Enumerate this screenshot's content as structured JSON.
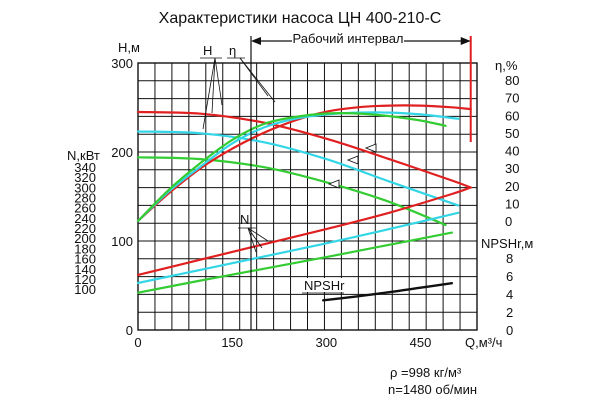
{
  "chart_data": {
    "type": "line",
    "title": "Характеристики насоса  ЦН 400-210-С",
    "work_range_label": "Рабочий интервал",
    "work_range": [
      180,
      530
    ],
    "x": {
      "label": "Q,м³/ч",
      "range": [
        0,
        540
      ],
      "ticks": [
        0,
        150,
        300,
        450
      ],
      "tick_labels": [
        "0",
        "150",
        "300",
        "450"
      ]
    },
    "axes": {
      "H": {
        "label": "H,м",
        "range": [
          0,
          300
        ],
        "ticks": [
          0,
          100,
          200,
          300
        ],
        "tick_labels": [
          "0",
          "100",
          "200",
          "300"
        ]
      },
      "N": {
        "label": "N,кВт",
        "range": [
          0,
          340
        ],
        "ticks": [
          100,
          120,
          140,
          160,
          180,
          200,
          220,
          240,
          260,
          280,
          300,
          320,
          340
        ],
        "tick_labels": [
          "100",
          "120",
          "140",
          "160",
          "180",
          "200",
          "220",
          "240",
          "260",
          "280",
          "300",
          "320",
          "340"
        ]
      },
      "eta": {
        "label": "η,%",
        "range": [
          0,
          80
        ],
        "ticks": [
          0,
          10,
          20,
          30,
          40,
          50,
          60,
          70,
          80
        ],
        "tick_labels": [
          "0",
          "10",
          "20",
          "30",
          "40",
          "50",
          "60",
          "70",
          "80"
        ]
      },
      "NPSH": {
        "label": "NPSHr,м",
        "range": [
          0,
          10
        ],
        "ticks": [
          0,
          2,
          4,
          6,
          8
        ],
        "tick_labels": [
          "0",
          "2",
          "4",
          "6",
          "8"
        ]
      }
    },
    "series_labels": {
      "H": "H",
      "N": "N",
      "eta": "η",
      "NPSH": "NPSHr"
    },
    "colors": {
      "red": "#e02020",
      "cyan": "#33d6e6",
      "green": "#33cc33",
      "black": "#111111"
    },
    "series": [
      {
        "group": "H",
        "color": "red",
        "x": [
          0,
          100,
          200,
          300,
          400,
          500,
          530
        ],
        "y": [
          245,
          243,
          233,
          215,
          192,
          168,
          160
        ]
      },
      {
        "group": "H",
        "color": "cyan",
        "x": [
          0,
          100,
          200,
          300,
          400,
          510
        ],
        "y": [
          223,
          221,
          211,
          192,
          167,
          140
        ]
      },
      {
        "group": "H",
        "color": "green",
        "x": [
          0,
          100,
          200,
          300,
          400,
          490
        ],
        "y": [
          194,
          192,
          183,
          166,
          144,
          118
        ]
      },
      {
        "group": "N",
        "color": "red",
        "x": [
          0,
          100,
          200,
          300,
          400,
          500,
          530
        ],
        "y": [
          128,
          158,
          188,
          218,
          250,
          287,
          300
        ]
      },
      {
        "group": "N",
        "color": "cyan",
        "x": [
          0,
          100,
          200,
          300,
          400,
          510
        ],
        "y": [
          112,
          138,
          164,
          190,
          218,
          250
        ]
      },
      {
        "group": "N",
        "color": "green",
        "x": [
          0,
          100,
          200,
          300,
          400,
          500
        ],
        "y": [
          93,
          117,
          140,
          163,
          187,
          211
        ]
      },
      {
        "group": "eta",
        "color": "red",
        "x": [
          0,
          50,
          100,
          150,
          200,
          250,
          300,
          350,
          400,
          450,
          500,
          530
        ],
        "y": [
          0,
          16,
          30,
          41,
          50,
          57,
          62,
          64.5,
          65.5,
          65.5,
          64.5,
          63.5
        ]
      },
      {
        "group": "eta",
        "color": "cyan",
        "x": [
          0,
          50,
          100,
          150,
          200,
          250,
          300,
          350,
          400,
          450,
          510
        ],
        "y": [
          0,
          17,
          31,
          44,
          53,
          58,
          60.5,
          61.5,
          61.5,
          60.5,
          58
        ]
      },
      {
        "group": "eta",
        "color": "green",
        "x": [
          0,
          50,
          100,
          150,
          200,
          250,
          300,
          350,
          400,
          450,
          490
        ],
        "y": [
          0,
          18,
          33,
          46,
          55,
          59,
          61,
          61,
          59.5,
          57,
          54
        ]
      },
      {
        "group": "NPSH",
        "color": "black",
        "x": [
          295,
          350,
          400,
          450,
          500
        ],
        "y": [
          3.3,
          3.75,
          4.2,
          4.7,
          5.2
        ]
      }
    ]
  },
  "footnotes": {
    "density": "ρ =998 кг/м³",
    "speed": "n=1480 об/мин"
  }
}
